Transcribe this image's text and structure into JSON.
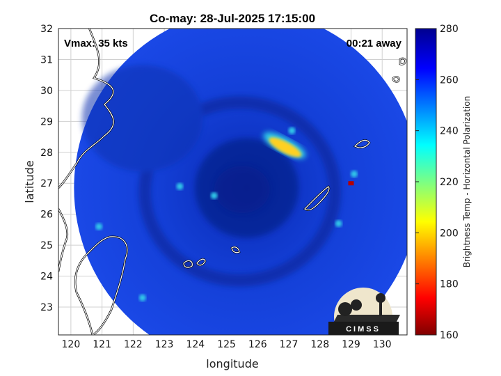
{
  "title": "Co-may: 28-Jul-2025 17:15:00",
  "vmax_label": "Vmax: 35 kts",
  "time_away_label": "00:21 away",
  "logo_text": "CIMSS",
  "chart_data": {
    "type": "heatmap",
    "title": "Co-may: 28-Jul-2025 17:15:00",
    "xlabel": "longitude",
    "ylabel": "latitude",
    "xlim": [
      119.6,
      130.8
    ],
    "ylim": [
      22.1,
      32
    ],
    "xticks": [
      120,
      121,
      122,
      123,
      124,
      125,
      126,
      127,
      128,
      129,
      130
    ],
    "yticks": [
      23,
      24,
      25,
      26,
      27,
      28,
      29,
      30,
      31,
      32
    ],
    "grid": true,
    "colorbar": {
      "label": "Brightness Temp - Horizontal Polarization",
      "range": [
        160,
        280
      ],
      "ticks": [
        160,
        180,
        200,
        220,
        240,
        260,
        280
      ],
      "colormap": "jet"
    },
    "swath": {
      "center_lon": 125.65,
      "center_lat": 26.85,
      "radius_lon": 5.55,
      "radius_lat": 5.75
    },
    "features": [
      {
        "name": "warm band northeast of center",
        "lon": 127.0,
        "lat": 28.1,
        "value": 205
      },
      {
        "name": "hot pixel",
        "lon": 129.0,
        "lat": 27.0,
        "value": 175
      },
      {
        "name": "cold eye region",
        "lon": 125.5,
        "lat": 26.8,
        "value": 262
      },
      {
        "name": "background ocean",
        "value": 268
      }
    ],
    "colors": {
      "deep": "#0b0b8a",
      "mid": "#1238e0",
      "cool": "#23c8e8",
      "warm": "#f5e62a",
      "hot": "#b40000"
    }
  }
}
